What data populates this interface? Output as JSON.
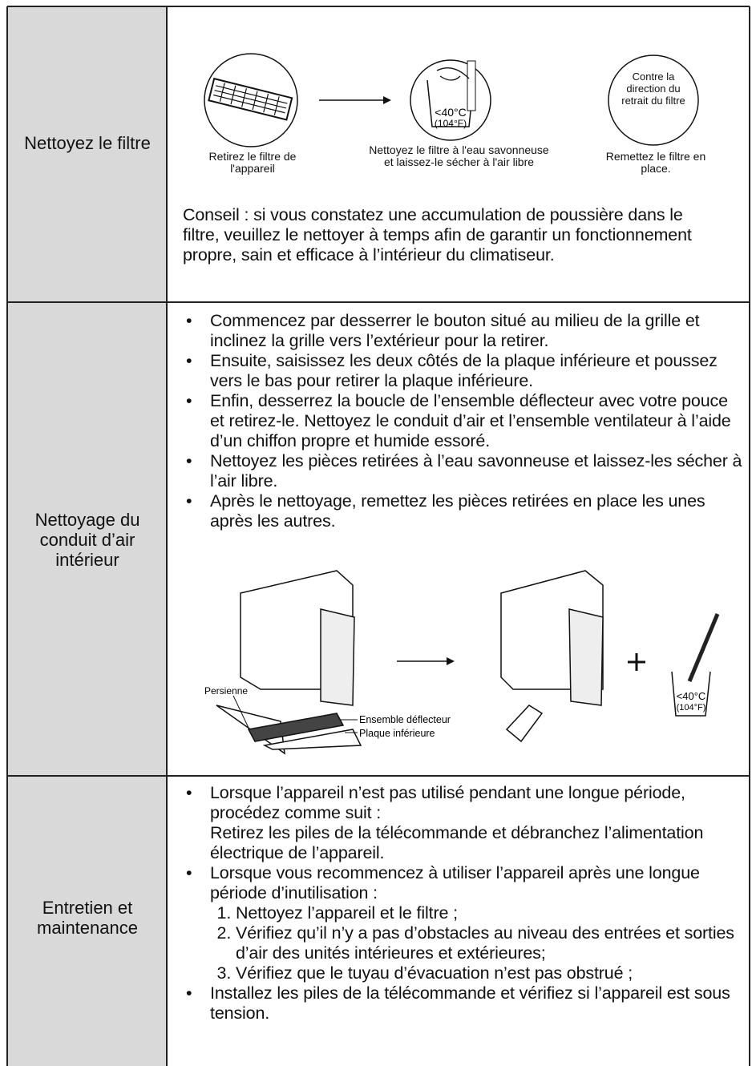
{
  "rows": [
    {
      "label": "Nettoyez le filtre",
      "figure": {
        "steps": [
          {
            "caption": "Retirez le filtre de l'appareil"
          },
          {
            "caption": "Nettoyez le filtre à l'eau savonneuse et laissez-le sécher à l'air libre",
            "temp_c": "<40°C",
            "temp_f": "(104°F)"
          },
          {
            "caption": "Remettez le filtre en place.",
            "note": "Contre la direction du retrait du filtre"
          }
        ]
      },
      "tip": "Conseil : si vous constatez une accumulation de poussière dans le filtre, veuillez le nettoyer à temps afin de garantir un fonctionnement propre, sain et efficace à l’intérieur du climatiseur."
    },
    {
      "label": "Nettoyage du conduit d’air intérieur",
      "bullets": [
        "Commencez par desserrer le bouton situé au milieu de la grille et inclinez la grille vers l’extérieur pour la retirer.",
        "Ensuite, saisissez les deux côtés de la plaque inférieure et poussez vers le bas pour retirer la plaque inférieure.",
        "Enfin, desserrez la boucle de l’ensemble déflecteur avec votre pouce et retirez-le. Nettoyez le conduit d’air et l’ensemble ventilateur à l’aide d’un chiffon propre et humide essoré.",
        "Nettoyez les pièces retirées à l’eau savonneuse et laissez-les sécher à l’air libre.",
        "Après le nettoyage, remettez les pièces retirées en place les unes après les autres."
      ],
      "figure": {
        "labels": [
          "Persienne",
          "Ensemble déflecteur",
          "Plaque inférieure"
        ],
        "temp_c": "<40°C",
        "temp_f": "(104°F)"
      }
    },
    {
      "label": "Entretien et maintenance",
      "bullets": [
        {
          "text": "Lorsque l’appareil n’est pas utilisé pendant une longue période, procédez comme suit :",
          "detail": "Retirez les piles de la télécommande et débranchez l’alimentation électrique de l’appareil."
        },
        {
          "text": "Lorsque vous recommencez à utiliser l’appareil après une longue période d’inutilisation :",
          "steps": [
            "Nettoyez l’appareil et le filtre ;",
            "Vérifiez qu’il n’y a pas d’obstacles au niveau des entrées et sorties d’air des unités intérieures et extérieures;",
            "Vérifiez que le tuyau d’évacuation n’est pas obstrué ;"
          ]
        },
        {
          "text": "Installez les piles de la télécommande et vérifiez si l’appareil est sous tension."
        }
      ]
    }
  ]
}
